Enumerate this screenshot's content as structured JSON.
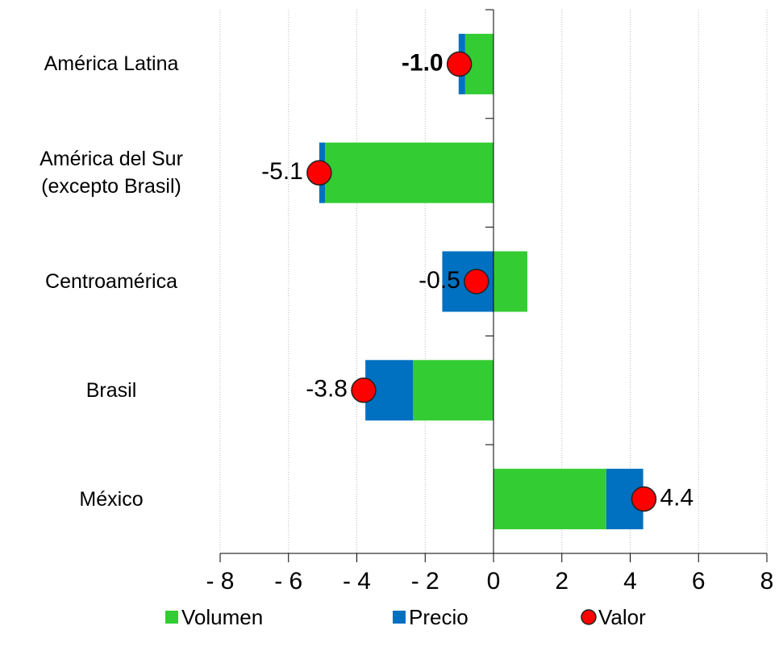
{
  "chart_data": {
    "type": "bar",
    "orientation": "horizontal",
    "stacked": true,
    "categories": [
      "América Latina",
      "América del Sur\n(excepto Brasil)",
      "Centroamérica",
      "Brasil",
      "México"
    ],
    "series": [
      {
        "name": "Volumen",
        "color": "#33cc33",
        "values": [
          -0.83,
          -4.93,
          0.99,
          -2.36,
          3.3
        ]
      },
      {
        "name": "Precio",
        "color": "#0070c0",
        "values": [
          -0.19,
          -0.17,
          -1.5,
          -1.39,
          1.08
        ]
      },
      {
        "name": "Valor",
        "color": "#ff0000",
        "type": "dot",
        "values": [
          -1.0,
          -5.1,
          -0.5,
          -3.8,
          4.4
        ],
        "value_labels": [
          "-1.0",
          "-5.1",
          "-0.5",
          "-3.8",
          "4.4"
        ]
      }
    ],
    "xlim": [
      -8,
      8
    ],
    "xticks": [
      {
        "value": -8,
        "label": "- 8"
      },
      {
        "value": -6,
        "label": "- 6"
      },
      {
        "value": -4,
        "label": "- 4"
      },
      {
        "value": -2,
        "label": "- 2"
      },
      0,
      2,
      4,
      6,
      8
    ],
    "grid": true
  }
}
